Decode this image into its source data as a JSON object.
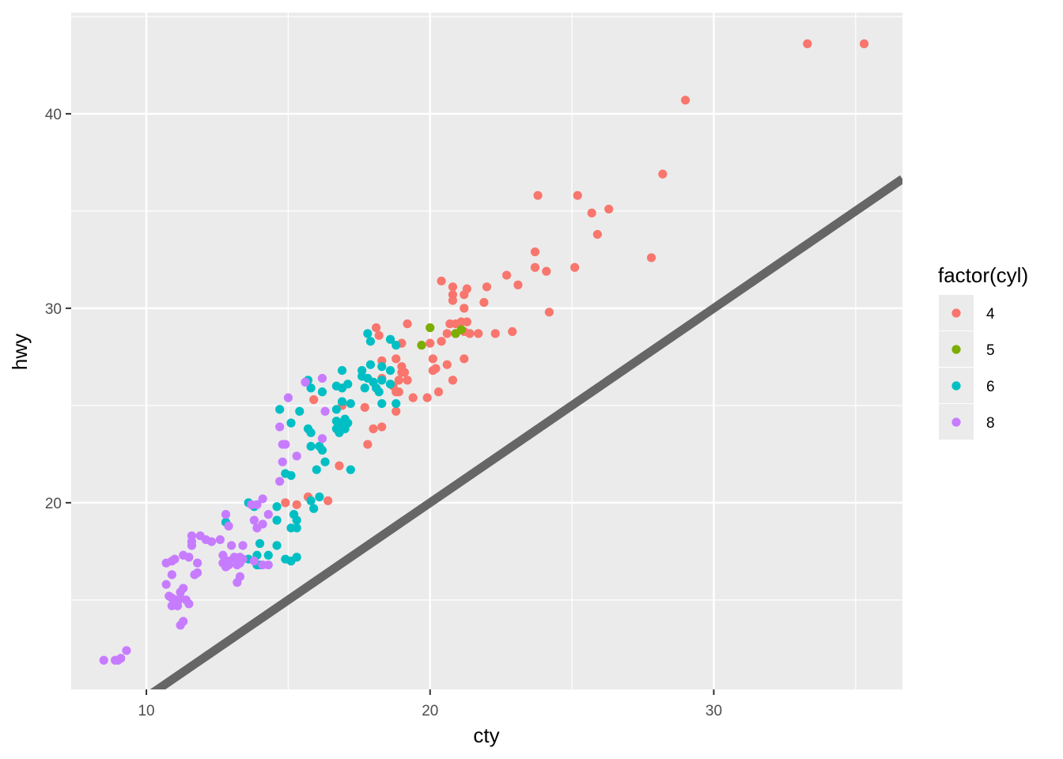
{
  "chart_data": {
    "type": "scatter",
    "title": "",
    "xlabel": "cty",
    "ylabel": "hwy",
    "xlim": [
      7.35,
      36.65
    ],
    "ylim": [
      10.4,
      45.2
    ],
    "x_ticks": [
      10,
      20,
      30
    ],
    "y_ticks": [
      20,
      30,
      40
    ],
    "grid": true,
    "legend": {
      "title": "factor(cyl)",
      "position": "right"
    },
    "reference_line": {
      "slope": 1,
      "intercept": 0,
      "color": "#666666"
    },
    "series": [
      {
        "name": "4",
        "color": "#F8766D",
        "points": [
          [
            35.3,
            43.6
          ],
          [
            33.3,
            43.6
          ],
          [
            29.0,
            40.7
          ],
          [
            28.2,
            36.9
          ],
          [
            23.8,
            35.8
          ],
          [
            25.2,
            35.8
          ],
          [
            25.7,
            34.9
          ],
          [
            26.3,
            35.1
          ],
          [
            25.9,
            33.8
          ],
          [
            23.7,
            32.9
          ],
          [
            27.8,
            32.6
          ],
          [
            23.7,
            32.1
          ],
          [
            24.1,
            31.9
          ],
          [
            25.1,
            32.1
          ],
          [
            20.4,
            31.4
          ],
          [
            22.7,
            31.7
          ],
          [
            23.1,
            31.2
          ],
          [
            22.0,
            31.1
          ],
          [
            20.8,
            31.1
          ],
          [
            21.3,
            31.0
          ],
          [
            20.8,
            30.7
          ],
          [
            20.8,
            30.4
          ],
          [
            21.2,
            30.7
          ],
          [
            21.9,
            30.3
          ],
          [
            21.2,
            30.0
          ],
          [
            24.2,
            29.8
          ],
          [
            21.1,
            29.3
          ],
          [
            21.3,
            29.3
          ],
          [
            20.7,
            29.2
          ],
          [
            20.9,
            29.2
          ],
          [
            18.1,
            29.0
          ],
          [
            19.2,
            29.2
          ],
          [
            20.4,
            28.3
          ],
          [
            20.6,
            28.7
          ],
          [
            20.9,
            28.7
          ],
          [
            21.2,
            28.8
          ],
          [
            21.4,
            28.7
          ],
          [
            21.7,
            28.7
          ],
          [
            22.3,
            28.7
          ],
          [
            22.9,
            28.8
          ],
          [
            18.2,
            28.6
          ],
          [
            19.0,
            28.2
          ],
          [
            20.0,
            28.2
          ],
          [
            20.1,
            27.4
          ],
          [
            21.2,
            27.4
          ],
          [
            18.3,
            27.3
          ],
          [
            18.8,
            27.4
          ],
          [
            19.0,
            27.0
          ],
          [
            20.2,
            26.9
          ],
          [
            20.1,
            26.8
          ],
          [
            20.6,
            27.1
          ],
          [
            18.9,
            26.3
          ],
          [
            18.3,
            26.4
          ],
          [
            19.1,
            26.7
          ],
          [
            19.0,
            26.7
          ],
          [
            19.2,
            26.3
          ],
          [
            20.8,
            26.3
          ],
          [
            18.7,
            26.0
          ],
          [
            18.8,
            25.7
          ],
          [
            18.9,
            25.7
          ],
          [
            20.3,
            25.7
          ],
          [
            19.4,
            25.4
          ],
          [
            19.9,
            25.4
          ],
          [
            16.9,
            25.0
          ],
          [
            15.9,
            25.3
          ],
          [
            17.7,
            24.9
          ],
          [
            18.8,
            24.7
          ],
          [
            18.0,
            23.8
          ],
          [
            18.3,
            23.9
          ],
          [
            17.8,
            23.0
          ],
          [
            16.8,
            21.9
          ],
          [
            14.9,
            20.0
          ],
          [
            15.3,
            19.9
          ],
          [
            15.7,
            20.3
          ],
          [
            16.4,
            20.1
          ]
        ]
      },
      {
        "name": "5",
        "color": "#7CAE00",
        "points": [
          [
            20.0,
            29.0
          ],
          [
            21.1,
            28.9
          ],
          [
            19.7,
            28.1
          ],
          [
            20.9,
            28.7
          ]
        ]
      },
      {
        "name": "6",
        "color": "#00BFC4",
        "points": [
          [
            17.8,
            28.7
          ],
          [
            17.9,
            28.3
          ],
          [
            18.6,
            28.4
          ],
          [
            18.8,
            28.1
          ],
          [
            17.9,
            27.1
          ],
          [
            18.3,
            27.0
          ],
          [
            18.6,
            26.8
          ],
          [
            17.6,
            26.8
          ],
          [
            16.9,
            26.8
          ],
          [
            17.6,
            26.5
          ],
          [
            17.8,
            26.4
          ],
          [
            18.3,
            26.3
          ],
          [
            18.0,
            26.2
          ],
          [
            17.7,
            25.9
          ],
          [
            18.1,
            25.9
          ],
          [
            18.6,
            26.1
          ],
          [
            18.2,
            25.7
          ],
          [
            15.7,
            26.3
          ],
          [
            15.8,
            25.9
          ],
          [
            16.2,
            25.7
          ],
          [
            16.7,
            26.0
          ],
          [
            16.9,
            25.9
          ],
          [
            17.1,
            26.1
          ],
          [
            16.9,
            25.2
          ],
          [
            17.2,
            25.1
          ],
          [
            18.3,
            25.1
          ],
          [
            18.8,
            25.1
          ],
          [
            14.7,
            24.8
          ],
          [
            15.4,
            24.7
          ],
          [
            16.7,
            24.8
          ],
          [
            15.1,
            24.1
          ],
          [
            16.7,
            24.2
          ],
          [
            16.8,
            24.1
          ],
          [
            17.0,
            24.3
          ],
          [
            17.1,
            24.1
          ],
          [
            15.7,
            23.8
          ],
          [
            15.8,
            23.6
          ],
          [
            16.7,
            23.8
          ],
          [
            16.8,
            23.6
          ],
          [
            17.0,
            23.8
          ],
          [
            16.1,
            22.9
          ],
          [
            16.2,
            22.7
          ],
          [
            15.8,
            22.9
          ],
          [
            16.3,
            22.1
          ],
          [
            16.0,
            21.7
          ],
          [
            17.2,
            21.7
          ],
          [
            14.9,
            21.5
          ],
          [
            15.1,
            21.4
          ],
          [
            13.6,
            20.0
          ],
          [
            13.8,
            19.8
          ],
          [
            14.6,
            19.8
          ],
          [
            16.1,
            20.3
          ],
          [
            15.8,
            20.1
          ],
          [
            15.9,
            19.7
          ],
          [
            15.2,
            19.4
          ],
          [
            14.6,
            19.1
          ],
          [
            15.3,
            19.1
          ],
          [
            15.1,
            18.7
          ],
          [
            15.3,
            18.7
          ],
          [
            14.0,
            17.9
          ],
          [
            14.6,
            17.8
          ],
          [
            13.9,
            17.3
          ],
          [
            14.3,
            17.3
          ],
          [
            13.6,
            17.1
          ],
          [
            13.9,
            16.8
          ],
          [
            14.0,
            16.8
          ],
          [
            14.9,
            17.1
          ],
          [
            15.1,
            17.0
          ],
          [
            15.3,
            17.2
          ],
          [
            12.8,
            19.0
          ]
        ]
      },
      {
        "name": "8",
        "color": "#C77CFF",
        "points": [
          [
            15.0,
            25.4
          ],
          [
            16.2,
            26.4
          ],
          [
            15.6,
            26.2
          ],
          [
            16.3,
            24.7
          ],
          [
            14.7,
            23.9
          ],
          [
            14.9,
            23.0
          ],
          [
            14.8,
            23.0
          ],
          [
            16.2,
            23.3
          ],
          [
            15.3,
            22.4
          ],
          [
            14.8,
            22.1
          ],
          [
            14.7,
            21.1
          ],
          [
            12.8,
            19.4
          ],
          [
            12.9,
            18.8
          ],
          [
            14.1,
            20.2
          ],
          [
            13.7,
            19.9
          ],
          [
            13.9,
            19.9
          ],
          [
            13.8,
            19.1
          ],
          [
            14.1,
            18.9
          ],
          [
            13.9,
            18.7
          ],
          [
            14.3,
            19.4
          ],
          [
            11.6,
            18.3
          ],
          [
            11.9,
            18.3
          ],
          [
            11.6,
            18.0
          ],
          [
            11.6,
            17.8
          ],
          [
            12.1,
            18.1
          ],
          [
            12.6,
            18.1
          ],
          [
            12.3,
            18.0
          ],
          [
            12.7,
            17.3
          ],
          [
            12.9,
            17.0
          ],
          [
            12.7,
            16.9
          ],
          [
            12.8,
            16.7
          ],
          [
            12.9,
            16.8
          ],
          [
            13.1,
            17.2
          ],
          [
            13.3,
            17.2
          ],
          [
            13.2,
            17.0
          ],
          [
            13.2,
            16.8
          ],
          [
            13.4,
            17.1
          ],
          [
            13.3,
            16.9
          ],
          [
            13.3,
            16.2
          ],
          [
            13.2,
            15.9
          ],
          [
            13.0,
            17.8
          ],
          [
            13.4,
            17.8
          ],
          [
            13.8,
            17.0
          ],
          [
            14.1,
            16.8
          ],
          [
            14.3,
            16.8
          ],
          [
            10.7,
            16.9
          ],
          [
            10.9,
            17.0
          ],
          [
            11.0,
            17.1
          ],
          [
            11.3,
            17.3
          ],
          [
            11.5,
            17.2
          ],
          [
            11.8,
            16.9
          ],
          [
            11.8,
            16.4
          ],
          [
            11.7,
            16.3
          ],
          [
            10.9,
            16.3
          ],
          [
            10.7,
            15.8
          ],
          [
            11.3,
            15.6
          ],
          [
            10.8,
            15.2
          ],
          [
            10.9,
            15.1
          ],
          [
            11.0,
            15.0
          ],
          [
            11.2,
            15.1
          ],
          [
            11.1,
            14.9
          ],
          [
            11.4,
            15.0
          ],
          [
            11.5,
            14.8
          ],
          [
            11.2,
            15.4
          ],
          [
            10.9,
            14.7
          ],
          [
            11.1,
            14.7
          ],
          [
            11.3,
            13.9
          ],
          [
            11.2,
            13.7
          ],
          [
            8.5,
            11.9
          ],
          [
            8.9,
            11.9
          ],
          [
            9.0,
            11.9
          ],
          [
            9.1,
            12.0
          ],
          [
            9.3,
            12.4
          ]
        ]
      }
    ]
  }
}
